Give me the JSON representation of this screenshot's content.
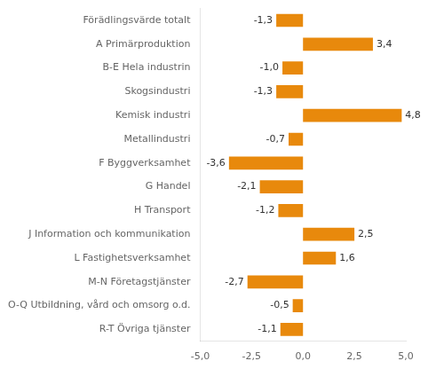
{
  "chart_data": {
    "type": "bar",
    "orientation": "horizontal",
    "categories": [
      "Förädlingsvärde totalt",
      "A Primärproduktion",
      "B-E Hela industrin",
      "Skogsindustri",
      "Kemisk industri",
      "Metallindustri",
      "F Byggverksamhet",
      "G Handel",
      "H Transport",
      "J Information och kommunikation",
      "L Fastighetsverksamhet",
      "M-N Företagstjänster",
      "O-Q Utbildning, vård och omsorg o.d.",
      "R-T Övriga tjänster"
    ],
    "values": [
      -1.3,
      3.4,
      -1.0,
      -1.3,
      4.8,
      -0.7,
      -3.6,
      -2.1,
      -1.2,
      2.5,
      1.6,
      -2.7,
      -0.5,
      -1.1
    ],
    "value_labels": [
      "-1,3",
      "3,4",
      "-1,0",
      "-1,3",
      "4,8",
      "-0,7",
      "-3,6",
      "-2,1",
      "-1,2",
      "2,5",
      "1,6",
      "-2,7",
      "-0,5",
      "-1,1"
    ],
    "color": "#E8890C",
    "xlim": [
      -5.0,
      5.0
    ],
    "xticks": [
      {
        "value": -5.0,
        "label": "-5,0"
      },
      {
        "value": -2.5,
        "label": "-2,5"
      },
      {
        "value": 0.0,
        "label": "0,0"
      },
      {
        "value": 2.5,
        "label": "2,5"
      },
      {
        "value": 5.0,
        "label": "5,0"
      }
    ],
    "grid": false,
    "data_labels": true
  }
}
